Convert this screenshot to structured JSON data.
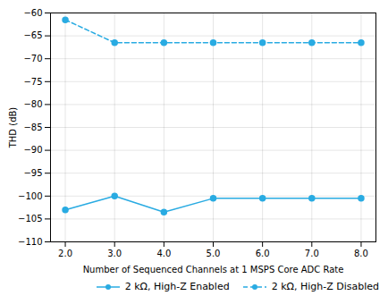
{
  "chart_data": {
    "type": "line",
    "xlabel": "Number of Sequenced Channels at 1 MSPS Core ADC Rate",
    "ylabel": "THD (dB)",
    "x": [
      2,
      3,
      4,
      5,
      6,
      7,
      8
    ],
    "series": [
      {
        "name": "2 kΩ, High-Z Enabled",
        "color": "#29ABE2",
        "marker": "circle",
        "line_style": "solid",
        "values": [
          -103,
          -100,
          -103.5,
          -100.5,
          -100.5,
          -100.5,
          -100.5
        ]
      },
      {
        "name": "2 kΩ, High-Z Disabled",
        "color": "#29ABE2",
        "marker": "circle",
        "line_style": "dashed",
        "values": [
          -61.5,
          -66.5,
          -66.5,
          -66.5,
          -66.5,
          -66.5,
          -66.5
        ]
      }
    ],
    "xlim": [
      1.7,
      8.3
    ],
    "ylim": [
      -110,
      -60
    ],
    "xticks": [
      2,
      3,
      4,
      5,
      6,
      7,
      8
    ],
    "yticks": [
      -60,
      -65,
      -70,
      -75,
      -80,
      -85,
      -90,
      -95,
      -100,
      -105,
      -110
    ],
    "grid": true,
    "legend": "lower right"
  }
}
